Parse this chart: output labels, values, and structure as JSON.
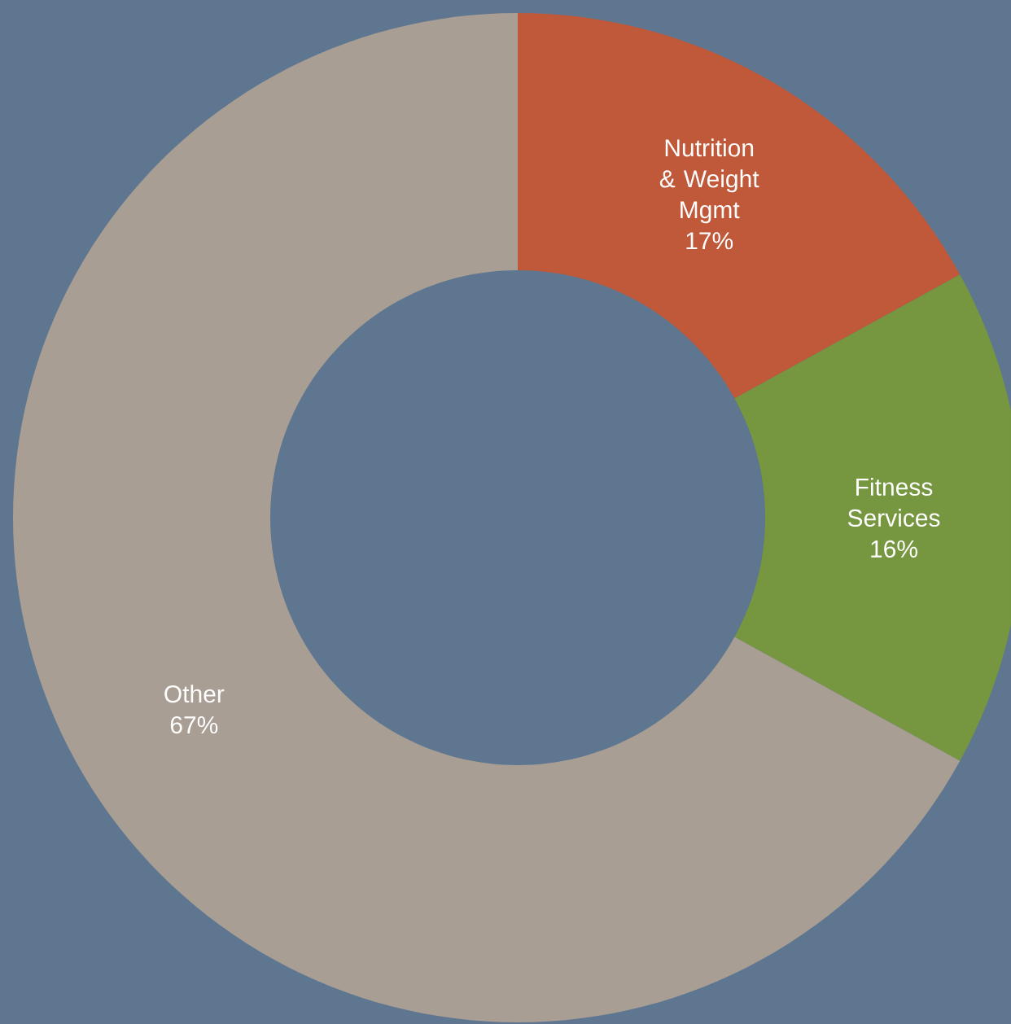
{
  "chart_data": {
    "type": "donut",
    "categories": [
      "Nutrition & Weight Mgmt",
      "Fitness Services",
      "Other"
    ],
    "values": [
      17,
      16,
      67
    ],
    "colors": [
      "#c0593a",
      "#76963f",
      "#a89e94"
    ],
    "value_labels": [
      "17%",
      "16%",
      "67%"
    ]
  }
}
